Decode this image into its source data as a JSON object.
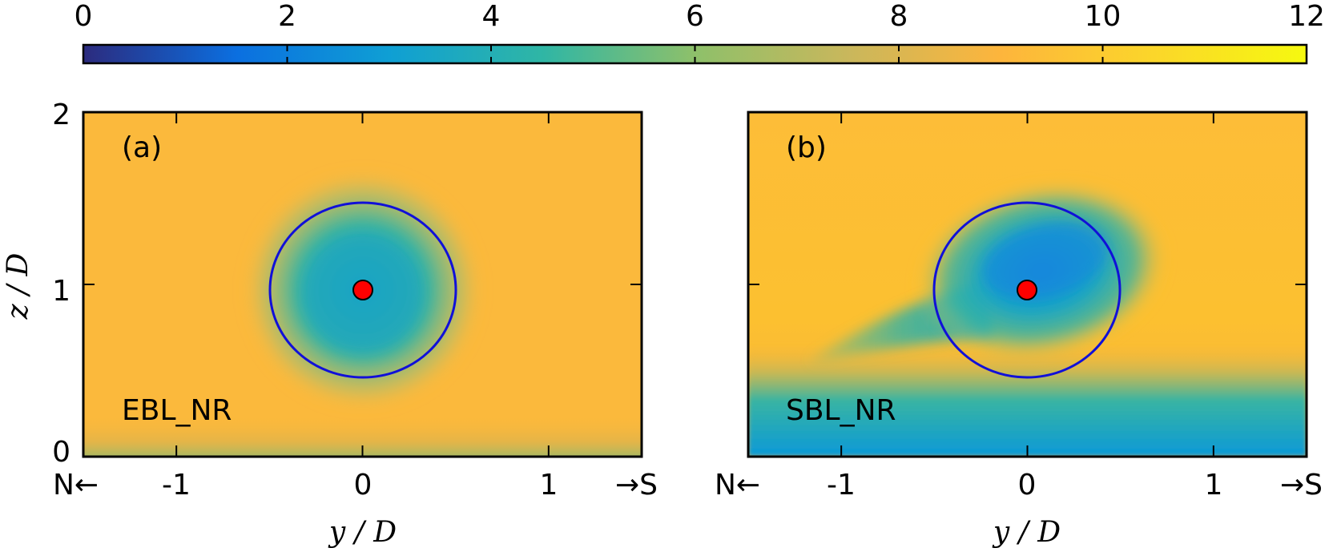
{
  "chart_data": [
    {
      "type": "colorbar",
      "range": [
        0,
        12
      ],
      "ticks": [
        "0",
        "2",
        "4",
        "6",
        "8",
        "10",
        "12"
      ],
      "colors": [
        "#2c2b7e",
        "#0b6fe0",
        "#0f9fd4",
        "#2fb6a5",
        "#8ec06a",
        "#c9b75c",
        "#fdb53c",
        "#fbd62a",
        "#f6f90f"
      ]
    },
    {
      "type": "heatmap",
      "panel_label": "(a)",
      "case_label": "EBL_NR",
      "xlabel": "y / D",
      "ylabel": "z / D",
      "xlim": [
        -1.5,
        1.5
      ],
      "ylim": [
        0,
        2
      ],
      "xticks": [
        "-1",
        "0",
        "1"
      ],
      "yticks": [
        "0",
        "1",
        "2"
      ],
      "left_direction": "N←",
      "right_direction": "→S",
      "background_value": 10.3,
      "circle": {
        "cy": 0,
        "cz": 1,
        "radius": 0.5,
        "color": "#1010d8"
      },
      "hub": {
        "y": 0,
        "z": 1,
        "color": "#ff0000"
      }
    },
    {
      "type": "heatmap",
      "panel_label": "(b)",
      "case_label": "SBL_NR",
      "xlabel": "y / D",
      "xlim": [
        -1.5,
        1.5
      ],
      "ylim": [
        0,
        2
      ],
      "xticks": [
        "-1",
        "0",
        "1"
      ],
      "left_direction": "N←",
      "right_direction": "→S",
      "background_value": 10.6,
      "circle": {
        "cy": 0,
        "cz": 1,
        "radius": 0.5,
        "color": "#1010d8"
      },
      "hub": {
        "y": 0,
        "z": 1,
        "color": "#ff0000"
      }
    }
  ]
}
